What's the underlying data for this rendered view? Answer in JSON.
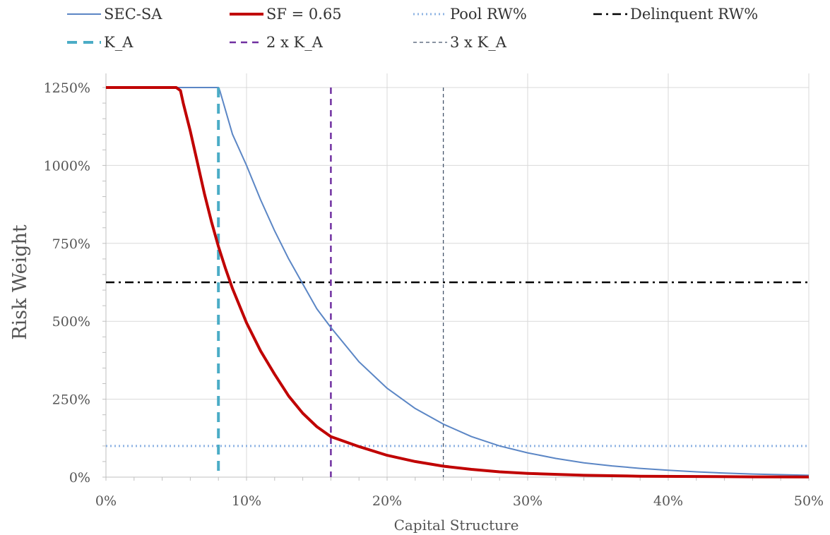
{
  "chart_data": {
    "type": "line",
    "title": "",
    "xlabel": "Capital Structure",
    "ylabel": "Risk Weight",
    "xlim": [
      0,
      0.5
    ],
    "ylim": [
      0,
      12.5
    ],
    "x_ticks": [
      0,
      0.1,
      0.2,
      0.3,
      0.4,
      0.5
    ],
    "x_tick_labels": [
      "0%",
      "10%",
      "20%",
      "30%",
      "40%",
      "50%"
    ],
    "y_ticks": [
      0,
      2.5,
      5,
      7.5,
      10,
      12.5
    ],
    "y_tick_labels": [
      "0%",
      "250%",
      "500%",
      "750%",
      "1000%",
      "1250%"
    ],
    "grid": true,
    "legend_position": "top",
    "series": [
      {
        "name": "SEC-SA",
        "color": "#5b86c5",
        "style": "solid",
        "x": [
          0,
          0.05,
          0.08,
          0.081,
          0.09,
          0.1,
          0.11,
          0.12,
          0.13,
          0.14,
          0.15,
          0.16,
          0.18,
          0.2,
          0.22,
          0.24,
          0.26,
          0.28,
          0.3,
          0.32,
          0.34,
          0.36,
          0.38,
          0.4,
          0.42,
          0.44,
          0.46,
          0.48,
          0.5
        ],
        "y": [
          12.5,
          12.5,
          12.5,
          12.4,
          11.0,
          10.0,
          8.9,
          7.9,
          7.0,
          6.2,
          5.4,
          4.8,
          3.7,
          2.85,
          2.2,
          1.7,
          1.3,
          1.0,
          0.78,
          0.6,
          0.46,
          0.36,
          0.28,
          0.22,
          0.17,
          0.13,
          0.1,
          0.08,
          0.06
        ]
      },
      {
        "name": "SF = 0.65",
        "color": "#c00000",
        "style": "solid",
        "x": [
          0,
          0.05,
          0.053,
          0.055,
          0.06,
          0.065,
          0.07,
          0.075,
          0.08,
          0.085,
          0.09,
          0.1,
          0.11,
          0.12,
          0.13,
          0.14,
          0.15,
          0.16,
          0.18,
          0.2,
          0.22,
          0.24,
          0.26,
          0.28,
          0.3,
          0.34,
          0.38,
          0.42,
          0.46,
          0.5
        ],
        "y": [
          12.5,
          12.5,
          12.4,
          12.0,
          11.1,
          10.1,
          9.1,
          8.2,
          7.4,
          6.7,
          6.05,
          4.95,
          4.05,
          3.3,
          2.6,
          2.05,
          1.62,
          1.3,
          0.98,
          0.7,
          0.5,
          0.35,
          0.25,
          0.17,
          0.12,
          0.06,
          0.03,
          0.02,
          0.01,
          0.005
        ]
      },
      {
        "name": "Pool RW%",
        "color": "#8fb4e3",
        "style": "dotted",
        "y_constant": 1.0
      },
      {
        "name": "Delinquent RW%",
        "color": "#000000",
        "style": "dash-dot",
        "y_constant": 6.25
      },
      {
        "name": "K_A",
        "color": "#4bacc6",
        "style": "long-dash",
        "x_constant": 0.08
      },
      {
        "name": "2 x K_A",
        "color": "#7030a0",
        "style": "dashed",
        "x_constant": 0.16
      },
      {
        "name": "3 x K_A",
        "color": "#44546a",
        "style": "short-dash",
        "x_constant": 0.24
      }
    ]
  }
}
